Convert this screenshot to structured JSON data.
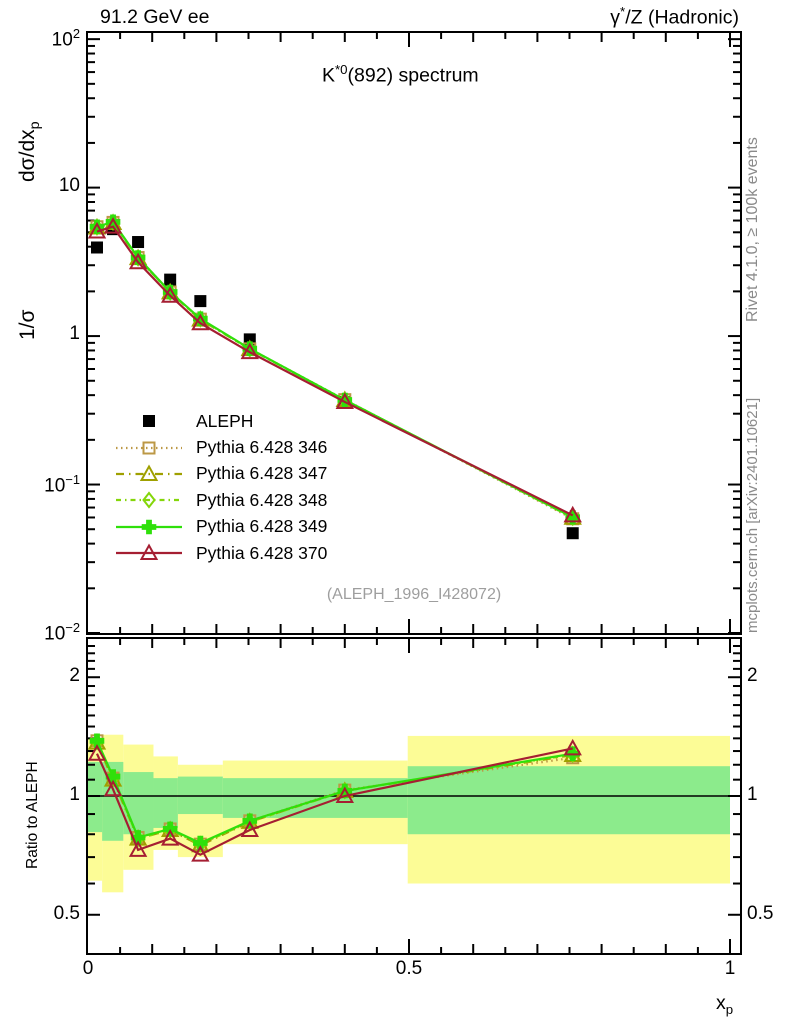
{
  "header": {
    "left_title": "91.2 GeV ee",
    "right_title_base": "γ",
    "right_title_sup": "*",
    "right_title_rest": "/Z (Hadronic)"
  },
  "right_margin": {
    "top_caption": "Rivet 4.1.0, ≥ 100k events",
    "bottom_caption": "mcplots.cern.ch [arXiv:2401.10621]",
    "caption_color": "#8a8a8a"
  },
  "main_panel": {
    "title_base": "K",
    "title_sup": "*0",
    "title_rest": "(892) spectrum",
    "ylabel_part1": "1/σ",
    "ylabel_part2": "dσ/dx",
    "ylabel_sub": "p",
    "watermark": "(ALEPH_1996_I428072)",
    "watermark_color": "#9e9e9e"
  },
  "ratio_panel": {
    "ylabel": "Ratio to ALEPH"
  },
  "xaxis": {
    "label_base": "x",
    "label_sub": "p",
    "ticks": [
      {
        "v": 0,
        "label": "0"
      },
      {
        "v": 0.5,
        "label": "0.5"
      },
      {
        "v": 1.0,
        "label": "1"
      }
    ]
  },
  "colors": {
    "yellow_band": "#fcfc96",
    "green_band": "#8ceb8c",
    "frame": "#000000"
  },
  "chart_data": [
    {
      "type": "line",
      "title": "K*0(892) spectrum",
      "xlabel": "x_p",
      "ylabel": "1/sigma dsigma/dx_p",
      "xlim": [
        0,
        1.0156
      ],
      "ylim_log": [
        0.01,
        110
      ],
      "yticks": [
        100,
        10,
        1,
        0.1,
        0.01
      ],
      "x": [
        0.014,
        0.039,
        0.078,
        0.128,
        0.175,
        0.252,
        0.4,
        0.755
      ],
      "series": [
        {
          "name": "ALEPH",
          "color": "#000000",
          "marker": "filled-square",
          "line": "none",
          "values": [
            3.95,
            5.25,
            4.3,
            2.4,
            1.72,
            0.95,
            0.36,
            0.047
          ]
        },
        {
          "name": "Pythia 6.428 346",
          "color": "#bc9846",
          "marker": "open-square",
          "line": "dotted",
          "values": [
            5.45,
            5.83,
            3.38,
            1.98,
            1.3,
            0.82,
            0.373,
            0.0588
          ]
        },
        {
          "name": "Pythia 6.428 347",
          "color": "#9fa000",
          "marker": "open-triangle",
          "line": "dashdot",
          "values": [
            5.39,
            5.78,
            3.35,
            1.97,
            1.29,
            0.817,
            0.371,
            0.0597
          ]
        },
        {
          "name": "Pythia 6.428 348",
          "color": "#84d60a",
          "marker": "open-diamond",
          "line": "dashdot2",
          "values": [
            5.41,
            5.83,
            3.35,
            1.97,
            1.3,
            0.817,
            0.371,
            0.0599
          ]
        },
        {
          "name": "Pythia 6.428 349",
          "color": "#2fe00a",
          "marker": "filled-clover",
          "line": "solid",
          "values": [
            5.45,
            5.88,
            3.38,
            1.98,
            1.31,
            0.822,
            0.371,
            0.0602
          ]
        },
        {
          "name": "Pythia 6.428 370",
          "color": "#a51e32",
          "marker": "open-triangle",
          "line": "solid",
          "values": [
            5.06,
            5.46,
            3.14,
            1.87,
            1.22,
            0.779,
            0.36,
            0.062
          ]
        }
      ]
    },
    {
      "type": "line",
      "title": "Ratio to ALEPH",
      "ylim_log": [
        0.4,
        2.5
      ],
      "yticks": [
        2,
        1,
        0.5
      ],
      "unity_line": 1,
      "x": [
        0.014,
        0.039,
        0.078,
        0.128,
        0.175,
        0.252,
        0.4,
        0.755
      ],
      "bands": [
        {
          "x0": 0.0,
          "x1": 0.022,
          "yellow": [
            0.61,
            1.4
          ],
          "green": [
            0.81,
            1.22
          ]
        },
        {
          "x0": 0.022,
          "x1": 0.055,
          "yellow": [
            0.57,
            1.43
          ],
          "green": [
            0.77,
            1.22
          ]
        },
        {
          "x0": 0.055,
          "x1": 0.102,
          "yellow": [
            0.65,
            1.35
          ],
          "green": [
            0.8,
            1.15
          ]
        },
        {
          "x0": 0.102,
          "x1": 0.14,
          "yellow": [
            0.73,
            1.26
          ],
          "green": [
            0.83,
            1.11
          ]
        },
        {
          "x0": 0.14,
          "x1": 0.21,
          "yellow": [
            0.7,
            1.2
          ],
          "green": [
            0.9,
            1.12
          ]
        },
        {
          "x0": 0.21,
          "x1": 0.498,
          "yellow": [
            0.755,
            1.23
          ],
          "green": [
            0.88,
            1.11
          ]
        },
        {
          "x0": 0.498,
          "x1": 1.0,
          "yellow": [
            0.6,
            1.42
          ],
          "green": [
            0.8,
            1.19
          ]
        }
      ],
      "series": [
        {
          "name": "Pythia 6.428 346",
          "color": "#bc9846",
          "marker": "open-square",
          "line": "dotted",
          "values": [
            1.38,
            1.11,
            0.785,
            0.825,
            0.755,
            0.865,
            1.035,
            1.25
          ]
        },
        {
          "name": "Pythia 6.428 347",
          "color": "#9fa000",
          "marker": "open-triangle",
          "line": "dashdot",
          "values": [
            1.365,
            1.1,
            0.78,
            0.82,
            0.75,
            0.86,
            1.03,
            1.27
          ]
        },
        {
          "name": "Pythia 6.428 348",
          "color": "#84d60a",
          "marker": "open-diamond",
          "line": "dashdot2",
          "values": [
            1.37,
            1.11,
            0.78,
            0.82,
            0.755,
            0.86,
            1.03,
            1.275
          ]
        },
        {
          "name": "Pythia 6.428 349",
          "color": "#2fe00a",
          "marker": "filled-clover",
          "line": "solid",
          "values": [
            1.38,
            1.12,
            0.785,
            0.825,
            0.76,
            0.865,
            1.03,
            1.28
          ]
        },
        {
          "name": "Pythia 6.428 370",
          "color": "#a51e32",
          "marker": "open-triangle",
          "line": "solid",
          "values": [
            1.28,
            1.04,
            0.73,
            0.78,
            0.71,
            0.82,
            1.0,
            1.32
          ]
        }
      ]
    }
  ]
}
